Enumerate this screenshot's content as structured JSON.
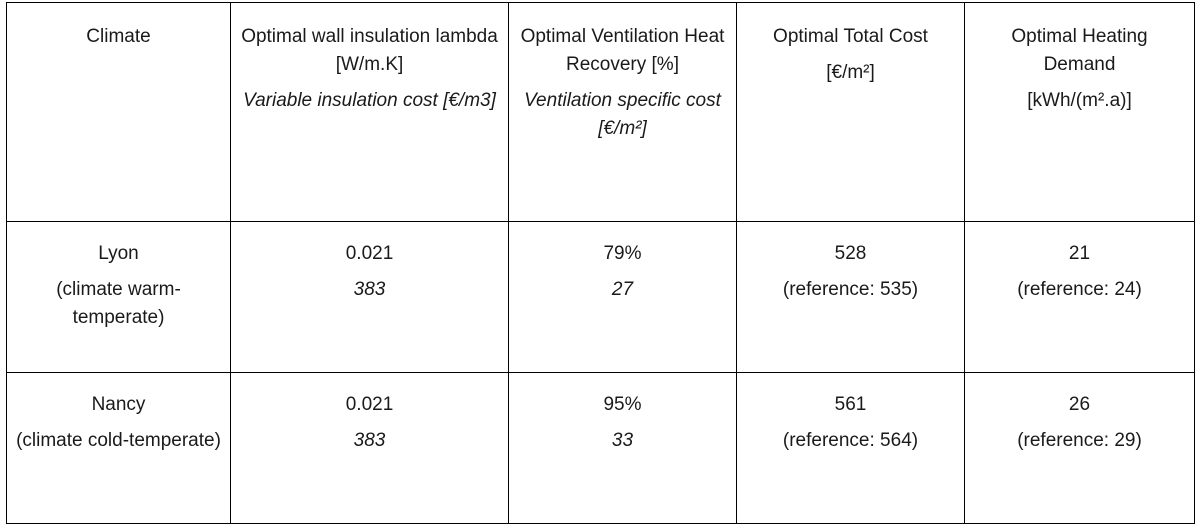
{
  "table": {
    "header": {
      "climate": "Climate",
      "insulation_title": "Optimal wall insulation lambda [W/m.K]",
      "insulation_sub": "Variable insulation cost [€/m3]",
      "ventilation_title": "Optimal Ventilation Heat Recovery [%]",
      "ventilation_sub": "Ventilation specific cost [€/m²]",
      "total_cost_title": "Optimal Total Cost",
      "total_cost_unit": "[€/m²]",
      "heating_title": "Optimal Heating Demand",
      "heating_unit": "[kWh/(m².a)]"
    },
    "rows": [
      {
        "city": "Lyon",
        "climate": "(climate warm-temperate)",
        "lambda": "0.021",
        "insulation_cost": "383",
        "heat_recovery": "79%",
        "ventilation_cost": "27",
        "total_cost": "528",
        "total_cost_reference": "(reference: 535)",
        "heating_demand": "21",
        "heating_reference": "(reference: 24)"
      },
      {
        "city": "Nancy",
        "climate": "(climate cold-temperate)",
        "lambda": "0.021",
        "insulation_cost": "383",
        "heat_recovery": "95%",
        "ventilation_cost": "33",
        "total_cost": "561",
        "total_cost_reference": "(reference: 564)",
        "heating_demand": "26",
        "heating_reference": "(reference: 29)"
      }
    ]
  }
}
